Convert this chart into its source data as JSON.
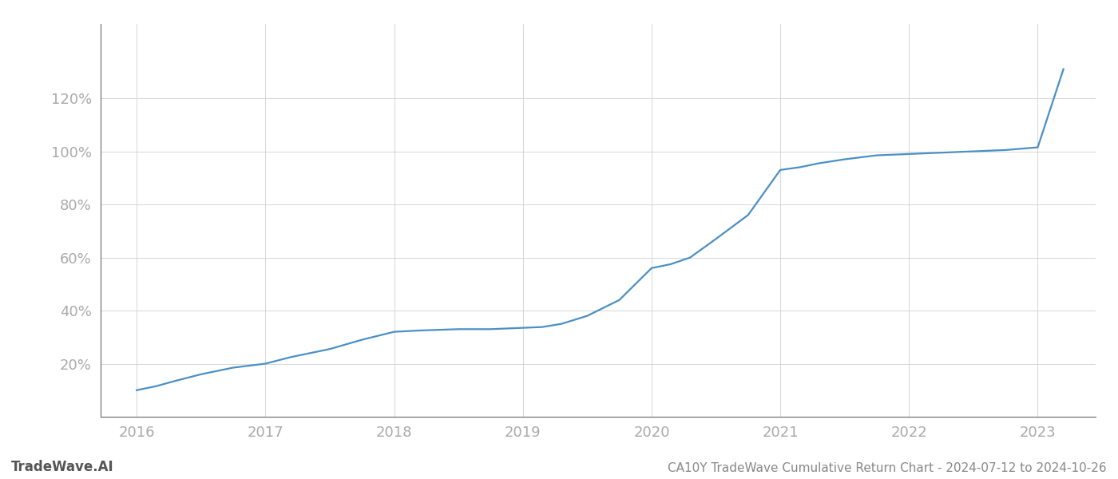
{
  "title": "CA10Y TradeWave Cumulative Return Chart - 2024-07-12 to 2024-10-26",
  "watermark": "TradeWave.AI",
  "line_color": "#4a90c4",
  "background_color": "#ffffff",
  "grid_color": "#d0d0d0",
  "x_values": [
    2016.0,
    2016.15,
    2016.3,
    2016.5,
    2016.75,
    2017.0,
    2017.2,
    2017.5,
    2017.75,
    2018.0,
    2018.2,
    2018.5,
    2018.75,
    2019.0,
    2019.15,
    2019.3,
    2019.5,
    2019.75,
    2020.0,
    2020.15,
    2020.3,
    2020.5,
    2020.75,
    2021.0,
    2021.15,
    2021.3,
    2021.5,
    2021.75,
    2022.0,
    2022.25,
    2022.5,
    2022.75,
    2023.0,
    2023.2
  ],
  "y_values": [
    10.0,
    11.5,
    13.5,
    16.0,
    18.5,
    20.0,
    22.5,
    25.5,
    29.0,
    32.0,
    32.5,
    33.0,
    33.0,
    33.5,
    33.8,
    35.0,
    38.0,
    44.0,
    56.0,
    57.5,
    60.0,
    67.0,
    76.0,
    93.0,
    94.0,
    95.5,
    97.0,
    98.5,
    99.0,
    99.5,
    100.0,
    100.5,
    101.5,
    131.0
  ],
  "x_ticks": [
    2016,
    2017,
    2018,
    2019,
    2020,
    2021,
    2022,
    2023
  ],
  "y_ticks": [
    20,
    40,
    60,
    80,
    100,
    120
  ],
  "y_tick_labels": [
    "20%",
    "40%",
    "60%",
    "80%",
    "100%",
    "120%"
  ],
  "xlim": [
    2015.72,
    2023.45
  ],
  "ylim": [
    0,
    148
  ],
  "line_width": 1.6,
  "title_fontsize": 11,
  "tick_fontsize": 13,
  "watermark_fontsize": 12
}
